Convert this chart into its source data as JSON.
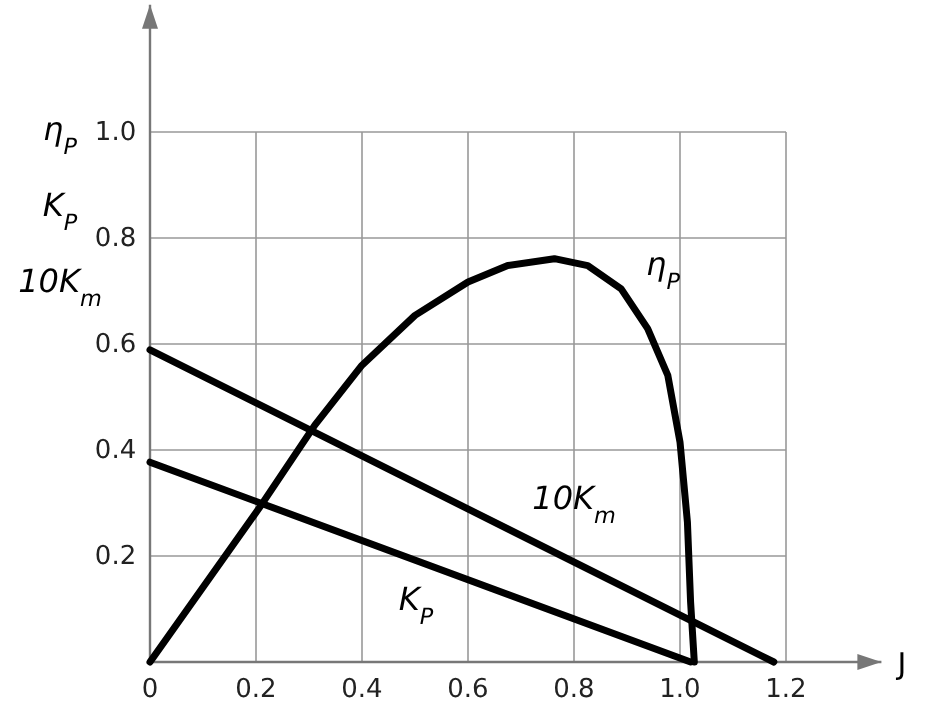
{
  "chart_data": {
    "type": "line",
    "xlabel": "J",
    "ylabel": "η$_{P}$\nK$_{P}$\n10K$_{m}$",
    "xlim": [
      0,
      1.38
    ],
    "ylim": [
      0,
      1.24
    ],
    "xticks": [
      0,
      0.2,
      0.4,
      0.6,
      0.8,
      {
        "value": 1,
        "label": "1.0"
      },
      1.2
    ],
    "yticks": [
      {
        "value": 0.2,
        "label": "0.2"
      },
      0.4,
      0.6,
      0.8,
      {
        "value": 1,
        "label": "1.0"
      }
    ],
    "grid": true,
    "legend": false,
    "marker": "none",
    "line_style": "solid",
    "series": [
      {
        "name": "η$_{P}$",
        "color": "#000000",
        "x": [
          0,
          0.205,
          0.311,
          0.4,
          0.5,
          0.6,
          0.675,
          0.763,
          0.826,
          0.889,
          0.939,
          0.977,
          1.0,
          1.014,
          1.02,
          1.027
        ],
        "values": [
          0,
          0.289,
          0.447,
          0.56,
          0.654,
          0.717,
          0.748,
          0.761,
          0.748,
          0.704,
          0.629,
          0.541,
          0.415,
          0.264,
          0.113,
          0
        ]
      },
      {
        "name": "10K$_{m}$",
        "color": "#000000",
        "x": [
          0,
          1.177
        ],
        "values": [
          0.589,
          0
        ]
      },
      {
        "name": "K$_{P}$",
        "color": "#000000",
        "x": [
          0,
          1.02
        ],
        "values": [
          0.377,
          0
        ]
      }
    ]
  }
}
